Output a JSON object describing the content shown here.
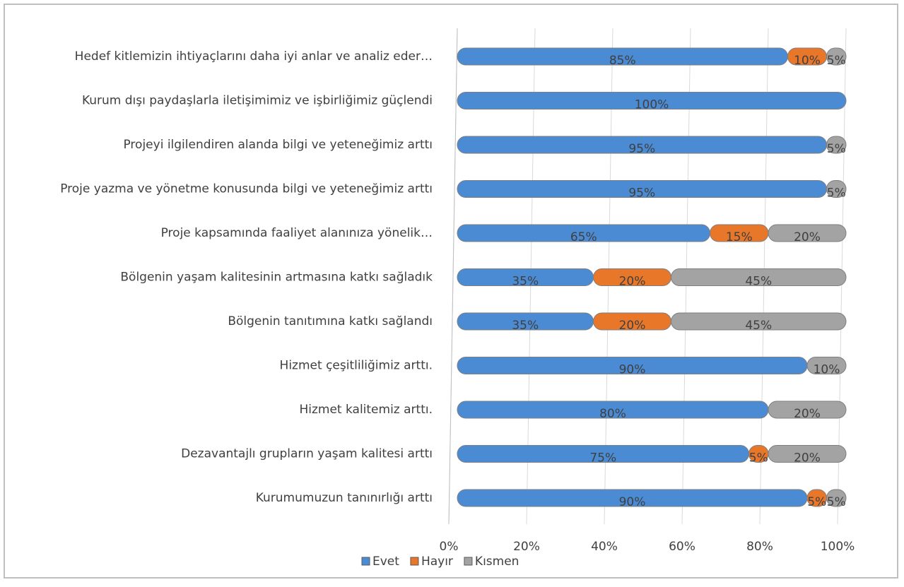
{
  "chart_data": {
    "type": "stacked_bar_horizontal",
    "categories": [
      "Hedef kitlemizin ihtiyaçlarını daha iyi anlar ve analiz eder…",
      "Kurum dışı paydaşlarla iletişimimiz ve işbirliğimiz güçlendi",
      "Projeyi ilgilendiren alanda bilgi ve yeteneğimiz arttı",
      "Proje yazma ve yönetme konusunda bilgi ve yeteneğimiz arttı",
      "Proje kapsamında faaliyet alanınıza yönelik…",
      "Bölgenin yaşam kalitesinin artmasına katkı sağladık",
      "Bölgenin tanıtımına katkı sağlandı",
      "Hizmet çeşitliliğimiz arttı.",
      "Hizmet kalitemiz arttı.",
      "Dezavantajlı grupların yaşam kalitesi arttı",
      "Kurumumuzun tanınırlığı arttı"
    ],
    "series": [
      {
        "name": "Evet",
        "color": "#4a8bd4",
        "values": [
          85,
          100,
          95,
          95,
          65,
          35,
          35,
          90,
          80,
          75,
          90
        ],
        "value_labels": [
          "85%",
          "100%",
          "95%",
          "95%",
          "65%",
          "35%",
          "35%",
          "90%",
          "80%",
          "75%",
          "90%"
        ]
      },
      {
        "name": "Hayır",
        "color": "#e8772a",
        "values": [
          10,
          0,
          0,
          0,
          15,
          20,
          20,
          0,
          0,
          5,
          5
        ],
        "value_labels": [
          "10%",
          null,
          null,
          null,
          "15%",
          "20%",
          "20%",
          null,
          null,
          "5%",
          "5%"
        ]
      },
      {
        "name": "Kısmen",
        "color": "#a3a3a3",
        "values": [
          5,
          0,
          5,
          5,
          20,
          45,
          45,
          10,
          20,
          20,
          5
        ],
        "value_labels": [
          "5%",
          null,
          "5%",
          "5%",
          "20%",
          "45%",
          "45%",
          "10%",
          "20%",
          "20%",
          "5%"
        ]
      }
    ],
    "xlim": [
      0,
      100
    ],
    "xticks": [
      {
        "value": 0,
        "label": "0%"
      },
      {
        "value": 20,
        "label": "20%"
      },
      {
        "value": 40,
        "label": "40%"
      },
      {
        "value": 60,
        "label": "60%"
      },
      {
        "value": 80,
        "label": "80%"
      },
      {
        "value": 100,
        "label": "100%"
      }
    ],
    "grid": true,
    "legend": "bottom"
  }
}
